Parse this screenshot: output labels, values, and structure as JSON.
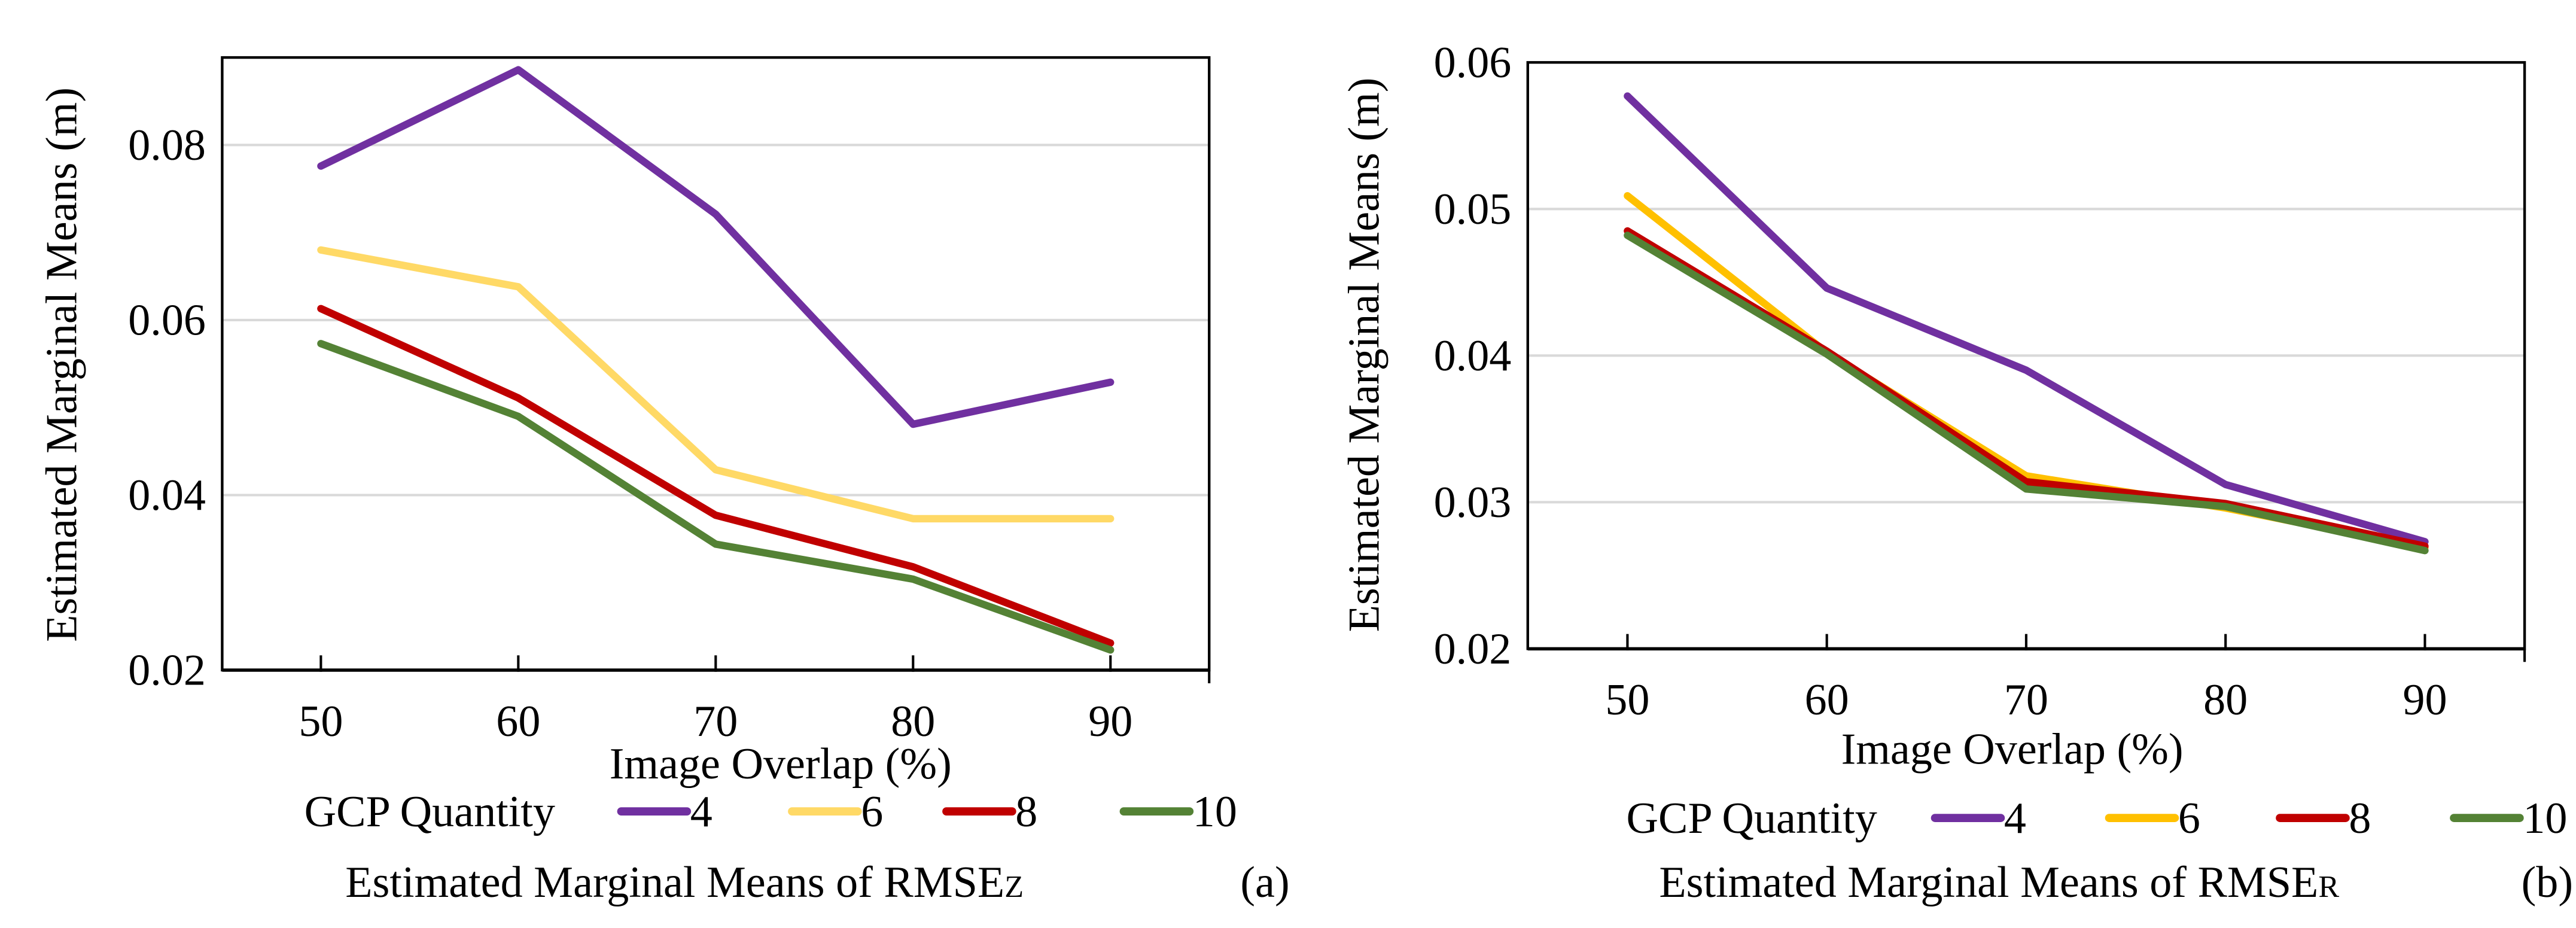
{
  "chart_data": [
    {
      "type": "line",
      "panel_label": "(a)",
      "title": "",
      "caption_prefix": "Estimated Marginal  Means of RMSE",
      "caption_sub": "Z",
      "xlabel": "Image Overlap  (%)",
      "ylabel": "Estimated Marginal  Means  (m)",
      "categories": [
        "50",
        "60",
        "70",
        "80",
        "90"
      ],
      "ylim": [
        0.02,
        0.09
      ],
      "yticks": [
        0.02,
        0.04,
        0.06,
        0.08
      ],
      "ytick_labels": [
        "0.02",
        "0.04",
        "0.06",
        "0.08"
      ],
      "grid": true,
      "legend_title": "GCP Quantity",
      "legend_position": "bottom",
      "series": [
        {
          "name": "4",
          "color": "#7030a0",
          "values": [
            0.0776,
            0.0886,
            0.0721,
            0.0481,
            0.0529
          ]
        },
        {
          "name": "6",
          "color": "#ffd966",
          "values": [
            0.068,
            0.0638,
            0.0429,
            0.0373,
            0.0373
          ]
        },
        {
          "name": "8",
          "color": "#c00000",
          "values": [
            0.0613,
            0.0511,
            0.0377,
            0.0318,
            0.0231
          ]
        },
        {
          "name": "10",
          "color": "#548235",
          "values": [
            0.0573,
            0.049,
            0.0344,
            0.0304,
            0.0223
          ]
        }
      ]
    },
    {
      "type": "line",
      "panel_label": "(b)",
      "title": "",
      "caption_prefix": "Estimated Marginal  Means of RMSE",
      "caption_sub": "R",
      "xlabel": "Image Overlap  (%)",
      "ylabel": "Estimated Marginal  Means  (m)",
      "categories": [
        "50",
        "60",
        "70",
        "80",
        "90"
      ],
      "ylim": [
        0.02,
        0.06
      ],
      "yticks": [
        0.02,
        0.03,
        0.04,
        0.05,
        0.06
      ],
      "ytick_labels": [
        "0.02",
        "0.03",
        "0.04",
        "0.05",
        "0.06"
      ],
      "grid": true,
      "legend_title": "GCP Quantity",
      "legend_position": "bottom",
      "series": [
        {
          "name": "4",
          "color": "#7030a0",
          "values": [
            0.0577,
            0.0446,
            0.039,
            0.0312,
            0.0273
          ]
        },
        {
          "name": "6",
          "color": "#ffc000",
          "values": [
            0.0509,
            0.0402,
            0.0318,
            0.0296,
            0.0269
          ]
        },
        {
          "name": "8",
          "color": "#c00000",
          "values": [
            0.0485,
            0.0403,
            0.0314,
            0.0299,
            0.027
          ]
        },
        {
          "name": "10",
          "color": "#548235",
          "values": [
            0.0482,
            0.0401,
            0.0309,
            0.0297,
            0.0267
          ]
        }
      ]
    }
  ]
}
